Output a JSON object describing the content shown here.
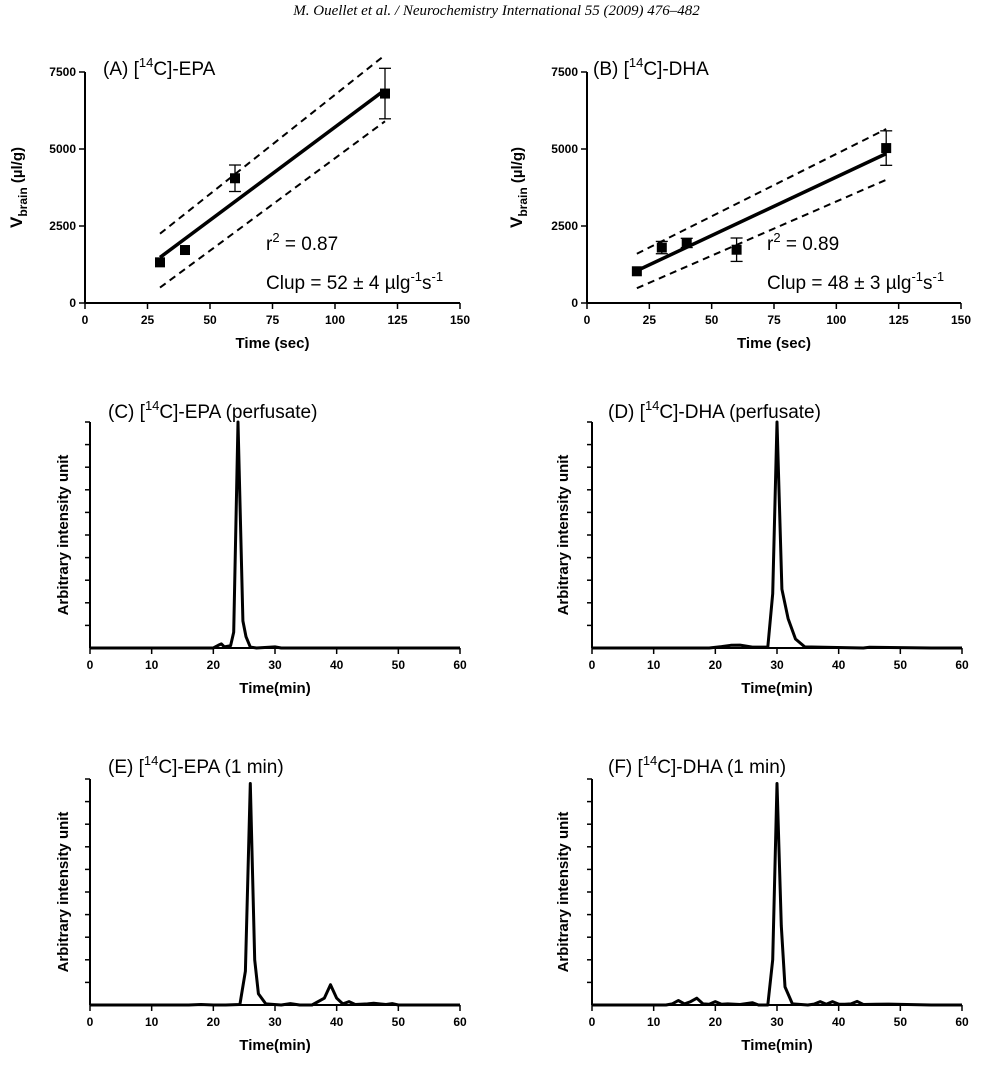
{
  "header": "M. Ouellet et al. / Neurochemistry International 55 (2009) 476–482",
  "colors": {
    "ink": "#000000",
    "background": "#ffffff"
  },
  "chart_data": [
    {
      "id": "A",
      "type": "scatter",
      "title": {
        "prefix": "(A) [",
        "sup": "14",
        "suffix": "C]-EPA"
      },
      "xlabel": "Time (sec)",
      "ylabel": {
        "main": "V",
        "sub": "brain",
        "unit": " (µl/g)"
      },
      "xlim": [
        0,
        150
      ],
      "ylim": [
        0,
        7500
      ],
      "xticks": [
        "0",
        "25",
        "50",
        "75",
        "100",
        "125",
        "150"
      ],
      "yticks": [
        "0",
        "2500",
        "5000",
        "7500"
      ],
      "points": [
        {
          "x": 30,
          "y": 1320,
          "err": 0
        },
        {
          "x": 40,
          "y": 1720,
          "err": 0
        },
        {
          "x": 60,
          "y": 4050,
          "err": 430
        },
        {
          "x": 120,
          "y": 6800,
          "err": 820
        }
      ],
      "fit": {
        "x": [
          30,
          120
        ],
        "y": [
          1480,
          6920
        ]
      },
      "ci_upper": {
        "x": [
          30,
          120
        ],
        "y": [
          2250,
          8050
        ]
      },
      "ci_lower": {
        "x": [
          30,
          120
        ],
        "y": [
          500,
          5900
        ]
      },
      "r2": "r² = 0.87",
      "r2_parts": {
        "a": "r",
        "sup": "2",
        "b": " = 0.87"
      },
      "clup": {
        "a": "Clup = 52 ± 4 µlg",
        "sup1": "-1",
        "b": "s",
        "sup2": "-1"
      }
    },
    {
      "id": "B",
      "type": "scatter",
      "title": {
        "prefix": "(B) [",
        "sup": "14",
        "suffix": "C]-DHA"
      },
      "xlabel": "Time (sec)",
      "ylabel": {
        "main": "V",
        "sub": "brain",
        "unit": " (µl/g)"
      },
      "xlim": [
        0,
        150
      ],
      "ylim": [
        0,
        7500
      ],
      "xticks": [
        "0",
        "25",
        "50",
        "75",
        "100",
        "125",
        "150"
      ],
      "yticks": [
        "0",
        "2500",
        "5000",
        "7500"
      ],
      "points": [
        {
          "x": 20,
          "y": 1030,
          "err": 0
        },
        {
          "x": 30,
          "y": 1800,
          "err": 200
        },
        {
          "x": 40,
          "y": 1950,
          "err": 150
        },
        {
          "x": 60,
          "y": 1730,
          "err": 380
        },
        {
          "x": 120,
          "y": 5030,
          "err": 560
        }
      ],
      "fit": {
        "x": [
          20,
          120
        ],
        "y": [
          1050,
          4850
        ]
      },
      "ci_upper": {
        "x": [
          20,
          120
        ],
        "y": [
          1600,
          5650
        ]
      },
      "ci_lower": {
        "x": [
          20,
          120
        ],
        "y": [
          480,
          4000
        ]
      },
      "r2": "r² = 0.89",
      "r2_parts": {
        "a": "r",
        "sup": "2",
        "b": " = 0.89"
      },
      "clup": {
        "a": "Clup = 48 ± 3 µlg",
        "sup1": "-1",
        "b": "s",
        "sup2": "-1"
      }
    },
    {
      "id": "C",
      "type": "line",
      "title": {
        "prefix": "(C) [",
        "sup": "14",
        "suffix": "C]-EPA (perfusate)"
      },
      "xlabel": "Time(min)",
      "ylabel": "Arbitrary intensity unit",
      "xlim": [
        0,
        60
      ],
      "ylim": [
        0,
        100
      ],
      "ytick_count": 10,
      "xticks": [
        "0",
        "10",
        "20",
        "30",
        "40",
        "50",
        "60"
      ],
      "x": [
        0,
        20,
        20.8,
        21.3,
        21.8,
        22.8,
        23.3,
        24,
        24.8,
        25.3,
        26,
        27,
        30,
        31,
        60
      ],
      "y": [
        0,
        0,
        1.2,
        1.8,
        0.5,
        1,
        7,
        100,
        12,
        5,
        0.4,
        0,
        0.5,
        0,
        0
      ]
    },
    {
      "id": "D",
      "type": "line",
      "title": {
        "prefix": "(D) [",
        "sup": "14",
        "suffix": "C]-DHA (perfusate)"
      },
      "xlabel": "Time(min)",
      "ylabel": "Arbitrary intensity unit",
      "xlim": [
        0,
        60
      ],
      "ylim": [
        0,
        100
      ],
      "ytick_count": 10,
      "xticks": [
        "0",
        "10",
        "20",
        "30",
        "40",
        "50",
        "60"
      ],
      "x": [
        0,
        19,
        21,
        22.5,
        24,
        26,
        28.5,
        29.3,
        30,
        30.8,
        31.8,
        33,
        34.5,
        44,
        45,
        55,
        60
      ],
      "y": [
        0,
        0,
        0.6,
        1.2,
        1.3,
        0.4,
        0.4,
        24,
        100,
        26,
        13,
        4,
        0.5,
        0,
        0.3,
        0,
        0
      ]
    },
    {
      "id": "E",
      "type": "line",
      "title": {
        "prefix": "(E) [",
        "sup": "14",
        "suffix": "C]-EPA (1 min)"
      },
      "xlabel": "Time(min)",
      "ylabel": "Arbitrary intensity unit",
      "xlim": [
        0,
        60
      ],
      "ylim": [
        0,
        100
      ],
      "ytick_count": 10,
      "xticks": [
        "0",
        "10",
        "20",
        "30",
        "40",
        "50",
        "60"
      ],
      "x": [
        0,
        16,
        18,
        20,
        22,
        24.3,
        25.2,
        26,
        26.7,
        27.3,
        28.5,
        31,
        32.5,
        34,
        36,
        38,
        39,
        40,
        41,
        42,
        43,
        45,
        46,
        48,
        49,
        50,
        60
      ],
      "y": [
        0,
        0,
        0.2,
        0,
        0,
        0.2,
        15,
        98,
        20,
        5,
        0.5,
        0,
        0.6,
        0,
        0,
        3,
        9,
        3,
        0.5,
        1.5,
        0.2,
        0.5,
        0.8,
        0.2,
        0.6,
        0,
        0
      ]
    },
    {
      "id": "F",
      "type": "line",
      "title": {
        "prefix": "(F) [",
        "sup": "14",
        "suffix": "C]-DHA (1 min)"
      },
      "xlabel": "Time(min)",
      "ylabel": "Arbitrary intensity unit",
      "xlim": [
        0,
        60
      ],
      "ylim": [
        0,
        100
      ],
      "ytick_count": 10,
      "xticks": [
        "0",
        "10",
        "20",
        "30",
        "40",
        "50",
        "60"
      ],
      "x": [
        0,
        12,
        13,
        14,
        15,
        16,
        17,
        18,
        19,
        20,
        21,
        22,
        24,
        26,
        27,
        28.5,
        29.3,
        30,
        30.7,
        31.3,
        32.5,
        35,
        36,
        37,
        38,
        39,
        40,
        41,
        42,
        43,
        44,
        46,
        48,
        55,
        60
      ],
      "y": [
        0,
        0,
        0.5,
        2,
        0.5,
        1.5,
        3,
        0.5,
        0.3,
        1.5,
        0.3,
        0.5,
        0.2,
        1,
        0,
        0,
        20,
        98,
        35,
        8,
        0.5,
        0,
        0.4,
        1.5,
        0.3,
        1.5,
        0.4,
        0.3,
        0.5,
        1.6,
        0.2,
        0.3,
        0.4,
        0,
        0
      ]
    }
  ]
}
